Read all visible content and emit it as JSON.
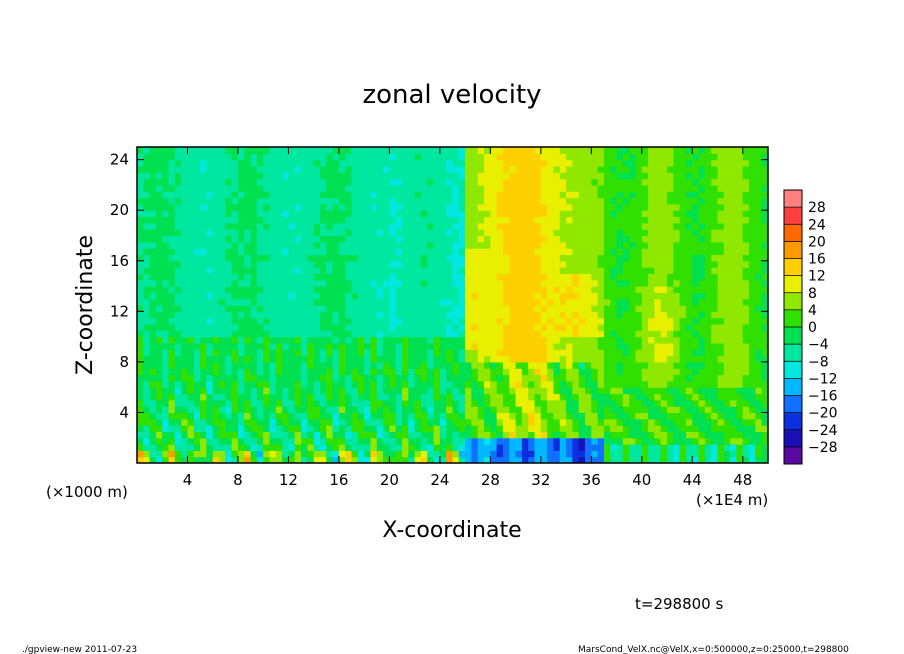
{
  "chart_data": {
    "type": "heatmap",
    "title": "zonal velocity",
    "xlabel": "X-coordinate",
    "ylabel": "Z-coordinate",
    "x_unit_left": "(×1000 m)",
    "x_unit_right": "(×1E4 m)",
    "xlim": [
      0,
      50
    ],
    "ylim": [
      0,
      25
    ],
    "x_ticks": [
      "4",
      "8",
      "12",
      "16",
      "20",
      "24",
      "28",
      "32",
      "36",
      "40",
      "44",
      "48"
    ],
    "x_tick_values": [
      4,
      8,
      12,
      16,
      20,
      24,
      28,
      32,
      36,
      40,
      44,
      48
    ],
    "y_ticks": [
      "4",
      "8",
      "12",
      "16",
      "20",
      "24"
    ],
    "y_tick_values": [
      4,
      8,
      12,
      16,
      20,
      24
    ],
    "colorbar": {
      "labels": [
        "28",
        "24",
        "20",
        "16",
        "12",
        "8",
        "4",
        "0",
        "−4",
        "−8",
        "−12",
        "−16",
        "−20",
        "−24",
        "−28"
      ],
      "levels": [
        -32,
        -28,
        -24,
        -20,
        -16,
        -12,
        -8,
        -4,
        0,
        4,
        8,
        12,
        16,
        20,
        24,
        28,
        32
      ],
      "colors": [
        "#5a0aa0",
        "#1a10b8",
        "#0a30e0",
        "#1070ff",
        "#00b8ff",
        "#00e8e0",
        "#00e8a0",
        "#00e050",
        "#30e000",
        "#90e800",
        "#e8f000",
        "#ffd000",
        "#ff9a00",
        "#ff6a00",
        "#ff4040",
        "#ff8080"
      ]
    },
    "field_description": [
      {
        "x_range": [
          0,
          26
        ],
        "z_range": [
          10,
          25
        ],
        "value": -4
      },
      {
        "x_range": [
          0,
          26
        ],
        "z_range": [
          0,
          10
        ],
        "value": 2
      },
      {
        "x_range": [
          26,
          36
        ],
        "z_range": [
          3,
          25
        ],
        "value": 14
      },
      {
        "x_range": [
          26,
          38
        ],
        "z_range": [
          0,
          2
        ],
        "value": -20
      },
      {
        "x_range": [
          36,
          50
        ],
        "z_range": [
          0,
          25
        ],
        "value": 4
      }
    ]
  },
  "annotations": {
    "time": "t=298800 s",
    "footer_left": "./gpview-new   2011-07-23",
    "footer_right": "MarsCond_VelX.nc@VelX,x=0:500000,z=0:25000,t=298800"
  }
}
